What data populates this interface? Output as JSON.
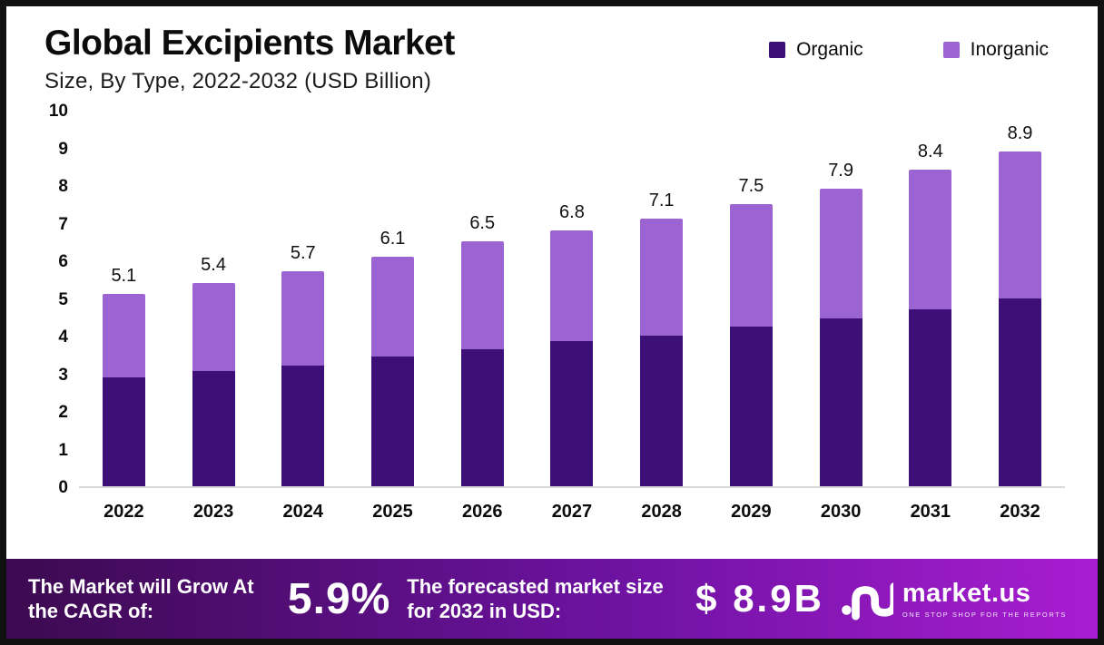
{
  "header": {
    "title": "Global Excipients Market",
    "subtitle": "Size, By Type, 2022-2032 (USD Billion)"
  },
  "legend": [
    {
      "label": "Organic",
      "color": "#3c1076"
    },
    {
      "label": "Inorganic",
      "color": "#9c64d3"
    }
  ],
  "chart_data": {
    "type": "bar",
    "stacked": true,
    "title": "Global Excipients Market Size, By Type, 2022-2032 (USD Billion)",
    "xlabel": "",
    "ylabel": "USD Billion",
    "ylim": [
      0,
      10
    ],
    "yticks": [
      0,
      1,
      2,
      3,
      4,
      5,
      6,
      7,
      8,
      9,
      10
    ],
    "grid": false,
    "legend_position": "top-right",
    "categories": [
      "2022",
      "2023",
      "2024",
      "2025",
      "2026",
      "2027",
      "2028",
      "2029",
      "2030",
      "2031",
      "2032"
    ],
    "series": [
      {
        "name": "Organic",
        "color": "#3c1076",
        "values": [
          2.9,
          3.05,
          3.2,
          3.45,
          3.65,
          3.85,
          4.0,
          4.25,
          4.45,
          4.7,
          5.0
        ]
      },
      {
        "name": "Inorganic",
        "color": "#9c64d3",
        "values": [
          2.2,
          2.35,
          2.5,
          2.65,
          2.85,
          2.95,
          3.1,
          3.25,
          3.45,
          3.7,
          3.9
        ]
      }
    ],
    "totals": [
      5.1,
      5.4,
      5.7,
      6.1,
      6.5,
      6.8,
      7.1,
      7.5,
      7.9,
      8.4,
      8.9
    ],
    "total_labels": [
      "5.1",
      "5.4",
      "5.7",
      "6.1",
      "6.5",
      "6.8",
      "7.1",
      "7.5",
      "7.9",
      "8.4",
      "8.9"
    ]
  },
  "footer": {
    "cagr_label": "The Market will Grow At the CAGR of:",
    "cagr_value": "5.9%",
    "forecast_label": "The forecasted market size for 2032 in USD:",
    "forecast_value": "$ 8.9B",
    "brand": "market.us",
    "brand_tagline": "ONE STOP SHOP FOR THE REPORTS"
  }
}
